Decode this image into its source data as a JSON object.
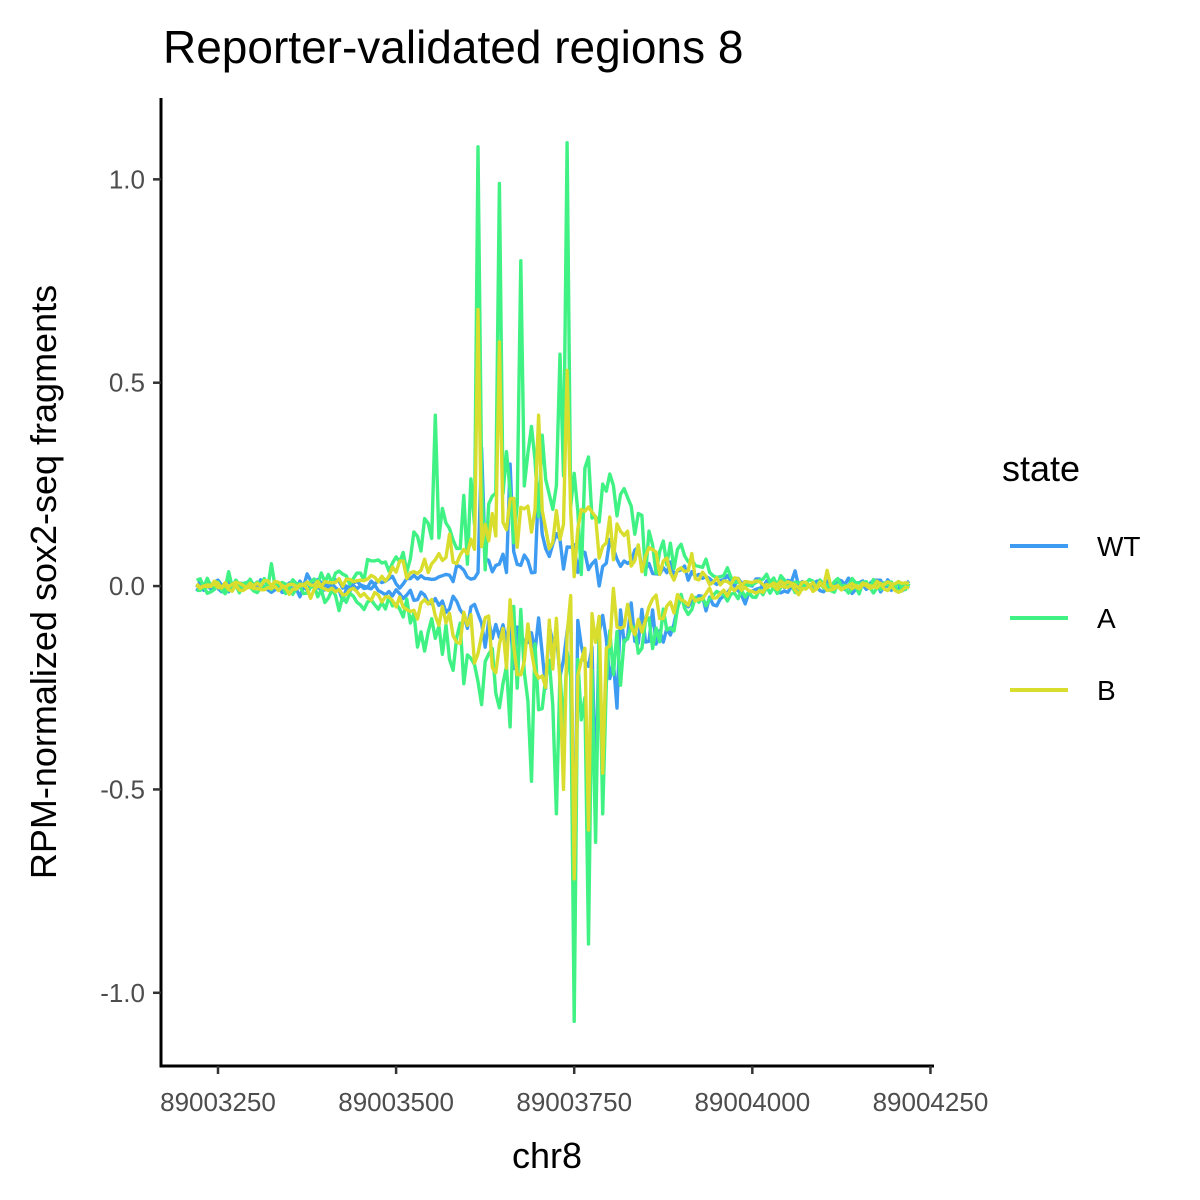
{
  "chart_data": {
    "type": "line",
    "title": "Reporter-validated regions 8",
    "xlabel": "chr8",
    "ylabel": "RPM-normalized sox2-seq fragments",
    "xlim": [
      89003170,
      89004255
    ],
    "ylim": [
      -1.18,
      1.2
    ],
    "x_ticks": [
      89003250,
      89003500,
      89003750,
      89004000,
      89004250
    ],
    "x_tick_labels": [
      "89003250",
      "89003500",
      "89003750",
      "89004000",
      "89004250"
    ],
    "y_ticks": [
      -1.0,
      -0.5,
      0.0,
      0.5,
      1.0
    ],
    "y_tick_labels": [
      "-1.0",
      "-0.5",
      "0.0",
      "0.5",
      "1.0"
    ],
    "grid": false,
    "legend_title": "state",
    "legend_position": "right",
    "x_range": [
      89003220,
      89004220
    ],
    "series": [
      {
        "name": "WT",
        "color": "#3d9cf2",
        "peak_center": 89003745,
        "peak_width": 150,
        "amp_pos": 0.36,
        "amp_neg": 0.77,
        "base_noise": 0.025,
        "forward_peaks": [
          [
            89003620,
            0.34
          ],
          [
            89003660,
            0.3
          ],
          [
            89003700,
            0.25
          ]
        ],
        "reverse_peaks": [
          [
            89003750,
            -0.77
          ],
          [
            89003780,
            -0.5
          ],
          [
            89003810,
            -0.3
          ]
        ]
      },
      {
        "name": "A",
        "color": "#3ff283",
        "peak_center": 89003700,
        "peak_width": 170,
        "amp_pos": 1.09,
        "amp_neg": 1.07,
        "base_noise": 0.03,
        "forward_peaks": [
          [
            89003617,
            1.08
          ],
          [
            89003643,
            0.99
          ],
          [
            89003677,
            0.8
          ],
          [
            89003728,
            0.57
          ],
          [
            89003740,
            1.09
          ],
          [
            89003555,
            0.42
          ]
        ],
        "reverse_peaks": [
          [
            89003750,
            -1.07
          ],
          [
            89003770,
            -0.88
          ],
          [
            89003782,
            -0.63
          ],
          [
            89003725,
            -0.56
          ],
          [
            89003790,
            -0.56
          ],
          [
            89003690,
            -0.48
          ]
        ]
      },
      {
        "name": "B",
        "color": "#d9dd2e",
        "peak_center": 89003700,
        "peak_width": 160,
        "amp_pos": 0.68,
        "amp_neg": 0.72,
        "base_noise": 0.02,
        "forward_peaks": [
          [
            89003617,
            0.68
          ],
          [
            89003643,
            0.6
          ],
          [
            89003700,
            0.42
          ],
          [
            89003740,
            0.53
          ],
          [
            89003915,
            0.08
          ]
        ],
        "reverse_peaks": [
          [
            89003748,
            -0.72
          ],
          [
            89003770,
            -0.6
          ],
          [
            89003790,
            -0.46
          ],
          [
            89003735,
            -0.5
          ]
        ]
      }
    ]
  }
}
